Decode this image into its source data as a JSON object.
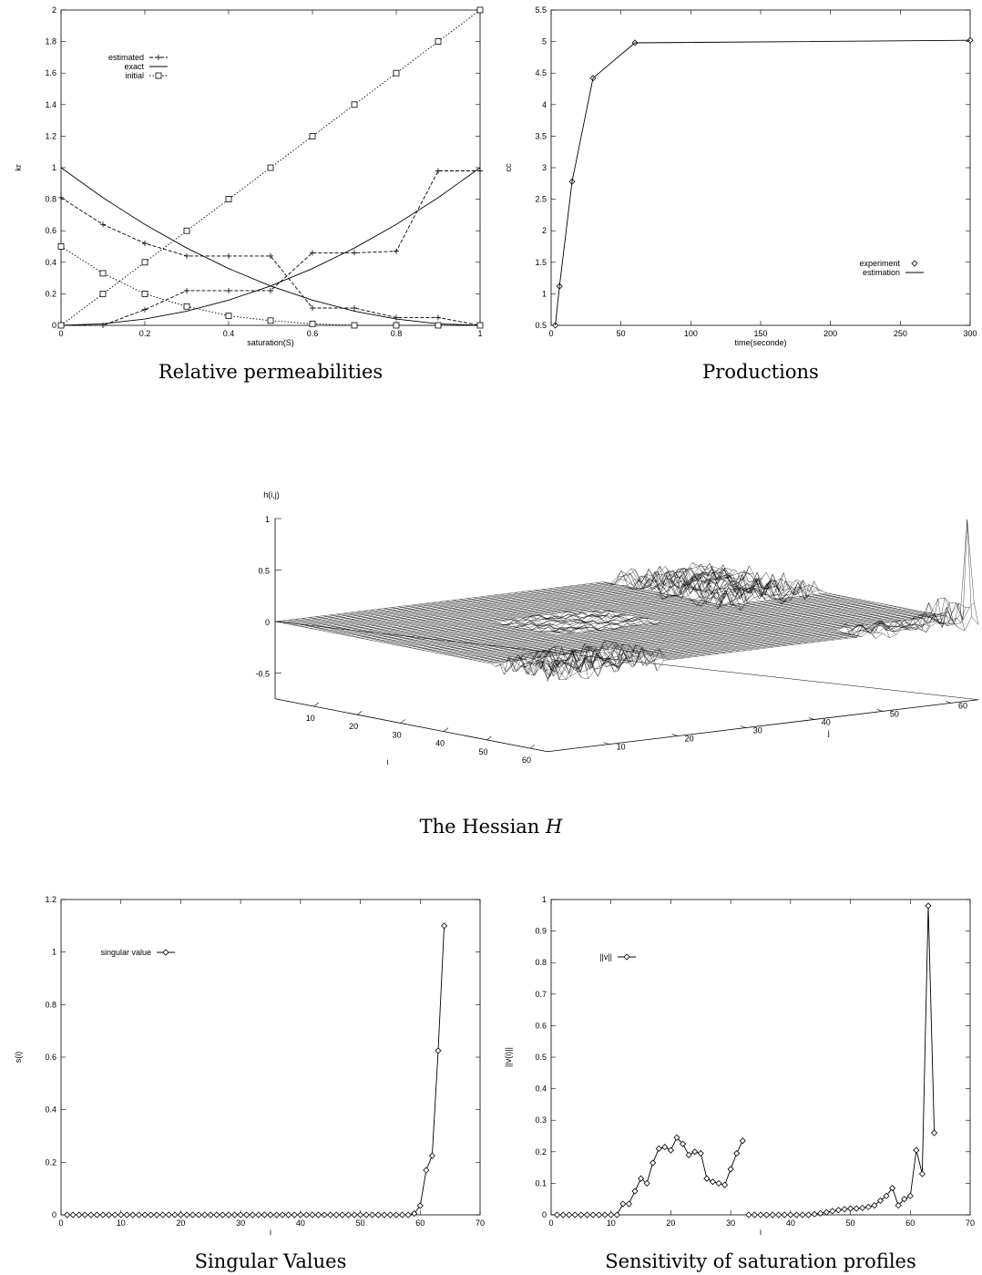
{
  "chart_data": [
    {
      "type": "line",
      "caption": "Relative permeabilities",
      "xlabel": "saturation(S)",
      "ylabel": "kr",
      "xlim": [
        0,
        1
      ],
      "ylim": [
        0,
        2
      ],
      "xticks": [
        "0",
        "0.2",
        "0.4",
        "0.6",
        "0.8",
        "1"
      ],
      "yticks": [
        "0",
        "0.2",
        "0.4",
        "0.6",
        "0.8",
        "1",
        "1.2",
        "1.4",
        "1.6",
        "1.8",
        "2"
      ],
      "legend": [
        "estimated",
        "exact",
        "initial"
      ],
      "legend_position": "top-left",
      "x": [
        0,
        0.1,
        0.2,
        0.3,
        0.4,
        0.5,
        0.6,
        0.7,
        0.8,
        0.9,
        1.0
      ],
      "series": [
        {
          "name": "estimated",
          "style": "dashed-plus",
          "values": [
            0.81,
            0.64,
            0.52,
            0.44,
            0.44,
            0.44,
            0.11,
            0.11,
            0.05,
            0.05,
            0.0
          ]
        },
        {
          "name": "estimated",
          "style": "dashed-plus",
          "values": [
            0.0,
            0.0,
            0.1,
            0.22,
            0.22,
            0.22,
            0.46,
            0.46,
            0.47,
            0.98,
            0.98
          ]
        },
        {
          "name": "exact",
          "style": "solid",
          "values": [
            1.0,
            0.81,
            0.64,
            0.49,
            0.36,
            0.25,
            0.16,
            0.09,
            0.04,
            0.01,
            0.0
          ]
        },
        {
          "name": "exact",
          "style": "solid",
          "values": [
            0.0,
            0.01,
            0.04,
            0.09,
            0.16,
            0.25,
            0.36,
            0.49,
            0.64,
            0.81,
            1.0
          ]
        },
        {
          "name": "initial",
          "style": "dotted-square",
          "values": [
            0.0,
            0.2,
            0.4,
            0.6,
            0.8,
            1.0,
            1.2,
            1.4,
            1.6,
            1.8,
            2.0
          ]
        },
        {
          "name": "initial",
          "style": "dotted-square",
          "values": [
            0.5,
            0.33,
            0.2,
            0.12,
            0.06,
            0.03,
            0.01,
            0.0,
            0.0,
            0.0,
            0.0
          ]
        }
      ]
    },
    {
      "type": "line",
      "caption": "Productions",
      "xlabel": "time(seconde)",
      "ylabel": "cc",
      "xlim": [
        0,
        300
      ],
      "ylim": [
        0.5,
        5.5
      ],
      "xticks": [
        "0",
        "50",
        "100",
        "150",
        "200",
        "250",
        "300"
      ],
      "yticks": [
        "0.5",
        "1",
        "1.5",
        "2",
        "2.5",
        "3",
        "3.5",
        "4",
        "4.5",
        "5",
        "5.5"
      ],
      "legend": [
        "experiment",
        "estimation"
      ],
      "legend_position": "right",
      "series": [
        {
          "name": "experiment",
          "style": "diamond",
          "x": [
            3,
            6,
            15,
            30,
            60,
            300
          ],
          "values": [
            0.5,
            1.12,
            2.78,
            4.42,
            4.98,
            5.02
          ]
        },
        {
          "name": "estimation",
          "style": "solid",
          "x": [
            3,
            6,
            15,
            30,
            60,
            300
          ],
          "values": [
            0.5,
            1.12,
            2.78,
            4.42,
            4.98,
            5.02
          ]
        }
      ]
    },
    {
      "type": "surface",
      "caption_prefix": "The Hessian ",
      "caption_math": "H",
      "zlabel": "h(i,j)",
      "xlabel": "i",
      "ylabel": "j",
      "zticks": [
        "1",
        "0.5",
        "0",
        "-0.5"
      ],
      "iticks": [
        "10",
        "20",
        "30",
        "40",
        "50",
        "60"
      ],
      "jticks": [
        "10",
        "20",
        "30",
        "40",
        "50",
        "60"
      ],
      "grid_size": 64,
      "features": [
        {
          "region": "i 20-35, j 20-35",
          "description": "small ripples"
        },
        {
          "region": "i 50-64, j 1-20",
          "description": "noisy spikes"
        },
        {
          "region": "i 1-30, j 50-64",
          "description": "noisy spikes"
        },
        {
          "region": "i 60-64, j 55-64",
          "description": "tall peak",
          "value": 1.0
        }
      ]
    },
    {
      "type": "line",
      "caption": "Singular Values",
      "xlabel": "i",
      "ylabel": "s(i)",
      "xlim": [
        0,
        70
      ],
      "ylim": [
        0,
        1.2
      ],
      "xticks": [
        "0",
        "10",
        "20",
        "30",
        "40",
        "50",
        "60",
        "70"
      ],
      "yticks": [
        "0",
        "0.2",
        "0.4",
        "0.6",
        "0.8",
        "1",
        "1.2"
      ],
      "legend": [
        "singular value"
      ],
      "legend_position": "top-left",
      "series": [
        {
          "name": "singular value",
          "style": "solid-diamond",
          "x": [
            1,
            2,
            3,
            4,
            5,
            6,
            7,
            8,
            9,
            10,
            11,
            12,
            13,
            14,
            15,
            16,
            17,
            18,
            19,
            20,
            21,
            22,
            23,
            24,
            25,
            26,
            27,
            28,
            29,
            30,
            31,
            32,
            33,
            34,
            35,
            36,
            37,
            38,
            39,
            40,
            41,
            42,
            43,
            44,
            45,
            46,
            47,
            48,
            49,
            50,
            51,
            52,
            53,
            54,
            55,
            56,
            57,
            58,
            59,
            60,
            61,
            62,
            63,
            64
          ],
          "values": [
            0,
            0,
            0,
            0,
            0,
            0,
            0,
            0,
            0,
            0,
            0,
            0,
            0,
            0,
            0,
            0,
            0,
            0,
            0,
            0,
            0,
            0,
            0,
            0,
            0,
            0,
            0,
            0,
            0,
            0,
            0,
            0,
            0,
            0,
            0,
            0,
            0,
            0,
            0,
            0,
            0,
            0,
            0,
            0,
            0,
            0,
            0,
            0,
            0,
            0,
            0,
            0,
            0,
            0,
            0,
            0,
            0,
            0,
            0.005,
            0.035,
            0.17,
            0.225,
            0.625,
            1.1
          ]
        }
      ]
    },
    {
      "type": "line",
      "caption": "Sensitivity of saturation profiles",
      "xlabel": "i",
      "ylabel": "||v(i)||",
      "xlim": [
        0,
        70
      ],
      "ylim": [
        0,
        1
      ],
      "xticks": [
        "0",
        "10",
        "20",
        "30",
        "40",
        "50",
        "60",
        "70"
      ],
      "yticks": [
        "0",
        "0.1",
        "0.2",
        "0.3",
        "0.4",
        "0.5",
        "0.6",
        "0.7",
        "0.8",
        "0.9",
        "1"
      ],
      "legend": [
        "||v||"
      ],
      "legend_position": "top-left",
      "series": [
        {
          "name": "||v||",
          "style": "solid-diamond",
          "x": [
            1,
            2,
            3,
            4,
            5,
            6,
            7,
            8,
            9,
            10,
            11,
            12,
            13,
            14,
            15,
            16,
            17,
            18,
            19,
            20,
            21,
            22,
            23,
            24,
            25,
            26,
            27,
            28,
            29,
            30,
            31,
            32
          ],
          "values": [
            0,
            0,
            0,
            0,
            0,
            0,
            0,
            0,
            0,
            0,
            0,
            0.035,
            0.035,
            0.075,
            0.115,
            0.1,
            0.165,
            0.21,
            0.215,
            0.205,
            0.245,
            0.225,
            0.19,
            0.2,
            0.195,
            0.115,
            0.105,
            0.1,
            0.095,
            0.145,
            0.195,
            0.235
          ]
        },
        {
          "name": "||v||",
          "style": "solid-diamond",
          "x": [
            33,
            34,
            35,
            36,
            37,
            38,
            39,
            40,
            41,
            42,
            43,
            44,
            45,
            46,
            47,
            48,
            49,
            50,
            51,
            52,
            53,
            54,
            55,
            56,
            57,
            58,
            59,
            60,
            61,
            62,
            63,
            64
          ],
          "values": [
            0,
            0,
            0,
            0,
            0,
            0,
            0,
            0,
            0,
            0,
            0,
            0.002,
            0.005,
            0.008,
            0.012,
            0.015,
            0.018,
            0.02,
            0.02,
            0.022,
            0.025,
            0.03,
            0.045,
            0.06,
            0.085,
            0.03,
            0.05,
            0.06,
            0.205,
            0.13,
            0.98,
            0.26
          ]
        }
      ]
    }
  ]
}
